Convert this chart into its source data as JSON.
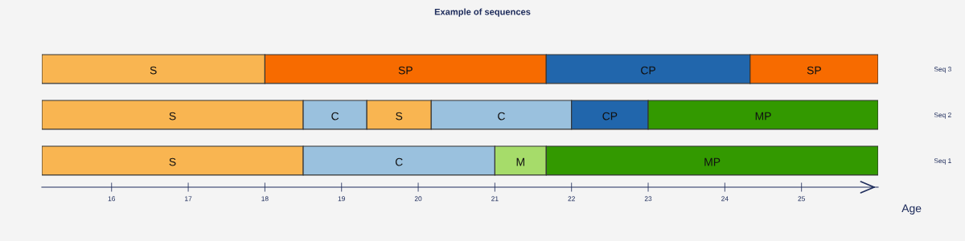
{
  "chart_data": {
    "type": "bar",
    "orientation": "horizontal",
    "title": "Example of sequences",
    "xlabel": "Age",
    "categories": [
      "Seq 3",
      "Seq 2",
      "Seq 1"
    ],
    "series": [
      {
        "base": [
          15.09,
          15.09,
          15.09
        ],
        "values": [
          2.91,
          3.41,
          3.41
        ],
        "colors": [
          "#f9b551",
          "#f9b551",
          "#f9b551"
        ],
        "value_labels": [
          "S",
          "S",
          "S"
        ]
      },
      {
        "base": [
          18,
          18.5,
          18.5
        ],
        "values": [
          3.67,
          0.83,
          2.5
        ],
        "colors": [
          "#f76b00",
          "#9ac1de",
          "#9ac1de"
        ],
        "value_labels": [
          "SP",
          "C",
          "C"
        ]
      },
      {
        "base": [
          21.67,
          19.33,
          21
        ],
        "values": [
          2.66,
          0.84,
          0.67
        ],
        "colors": [
          "#2166ac",
          "#f9b551",
          "#a6dc6a"
        ],
        "value_labels": [
          "CP",
          "S",
          "M"
        ]
      },
      {
        "base": [
          24.33,
          20.17,
          21.67
        ],
        "values": [
          1.67,
          1.83,
          4.33
        ],
        "colors": [
          "#f76b00",
          "#9ac1de",
          "#339900"
        ],
        "value_labels": [
          "SP",
          "C",
          "MP"
        ]
      },
      {
        "base": [
          null,
          22,
          null
        ],
        "values": [
          null,
          1,
          null
        ],
        "colors": [
          null,
          "#2166ac",
          null
        ],
        "value_labels": [
          null,
          "CP",
          null
        ]
      },
      {
        "base": [
          null,
          23,
          null
        ],
        "values": [
          null,
          3,
          null
        ],
        "colors": [
          null,
          "#339900",
          null
        ],
        "value_labels": [
          null,
          "MP",
          null
        ]
      }
    ],
    "xlim": [
      15.09,
      26
    ],
    "xticks": [
      16,
      17,
      18,
      19,
      20,
      21,
      22,
      23,
      24,
      25
    ],
    "grid": false,
    "legend": false
  }
}
